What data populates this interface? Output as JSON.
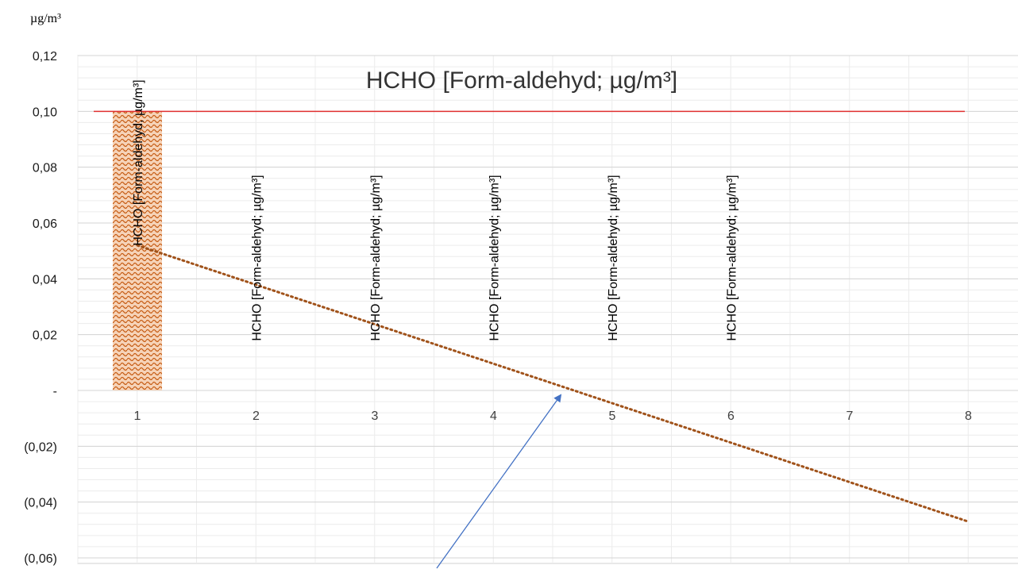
{
  "chart_data": {
    "type": "bar",
    "title": "HCHO [Form-aldehyd; µg/m³]",
    "unit_label": "µg/m³",
    "categories": [
      "1",
      "2",
      "3",
      "4",
      "5",
      "6",
      "7",
      "8"
    ],
    "series": [
      {
        "values": [
          0.1,
          0,
          0,
          0,
          0,
          0,
          null,
          null
        ],
        "data_labels": [
          "HCHO [Form-aldehyd; µg/m³]",
          "HCHO [Form-aldehyd; µg/m³]",
          "HCHO [Form-aldehyd; µg/m³]",
          "HCHO [Form-aldehyd; µg/m³]",
          "HCHO [Form-aldehyd; µg/m³]",
          "HCHO [Form-aldehyd; µg/m³]",
          "",
          ""
        ],
        "color": "#c55a11"
      }
    ],
    "limit_line": {
      "value": 0.1,
      "color": "#e03030"
    },
    "trendline": {
      "type": "linear",
      "start": [
        1,
        0.052
      ],
      "end": [
        8,
        -0.047
      ],
      "color": "#a0521a"
    },
    "annotation_arrow_color": "#4472c4",
    "yticks": [
      "0,12",
      "0,10",
      "0,08",
      "0,06",
      "0,04",
      "0,02",
      "-",
      "(0,02)",
      "(0,04)",
      "(0,06)"
    ],
    "ytick_values": [
      0.12,
      0.1,
      0.08,
      0.06,
      0.04,
      0.02,
      0,
      -0.02,
      -0.04,
      -0.06
    ],
    "ylim": [
      -0.06,
      0.12
    ],
    "grid": true,
    "legend": "none"
  }
}
